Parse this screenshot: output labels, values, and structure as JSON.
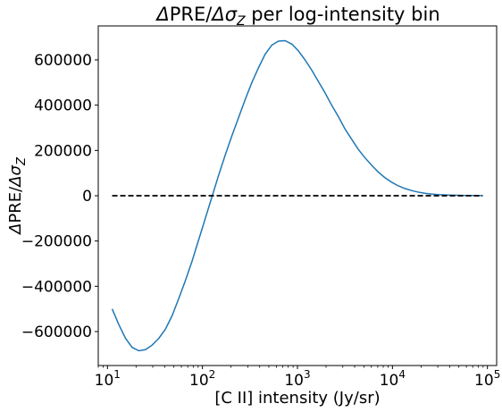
{
  "chart_data": {
    "type": "line",
    "title_parts": {
      "delta1": "Δ",
      "pre": "PRE/",
      "delta2": "Δ",
      "sigma": "σ",
      "sigma_sub": "Z",
      "suffix": " per log-intensity bin"
    },
    "xlabel": "[C II] intensity (Jy/sr)",
    "ylabel_parts": {
      "delta1": "Δ",
      "pre": "PRE/",
      "delta2": "Δ",
      "sigma": "σ",
      "sigma_sub": "Z"
    },
    "x_scale": "log",
    "xlim": [
      8,
      125000
    ],
    "ylim": [
      -750000,
      750000
    ],
    "x_ticks": [
      {
        "base": "10",
        "exp": "1",
        "value": 10
      },
      {
        "base": "10",
        "exp": "2",
        "value": 100
      },
      {
        "base": "10",
        "exp": "3",
        "value": 1000
      },
      {
        "base": "10",
        "exp": "4",
        "value": 10000
      },
      {
        "base": "10",
        "exp": "5",
        "value": 100000
      }
    ],
    "y_ticks": [
      {
        "label": "600000",
        "value": 600000
      },
      {
        "label": "400000",
        "value": 400000
      },
      {
        "label": "200000",
        "value": 200000
      },
      {
        "label": "0",
        "value": 0
      },
      {
        "label": "−200000",
        "value": -200000
      },
      {
        "label": "−400000",
        "value": -400000
      },
      {
        "label": "−600000",
        "value": -600000
      }
    ],
    "grid": false,
    "series": [
      {
        "style": "solid",
        "color": "#1f77b4",
        "x": [
          11.2,
          13.2,
          15.5,
          18.2,
          21.4,
          25.1,
          29.5,
          34.7,
          40.7,
          47.9,
          56.2,
          66.1,
          77.6,
          91.2,
          107.2,
          125.9,
          147.9,
          173.8,
          204.2,
          239.9,
          281.8,
          331.1,
          389.0,
          457.1,
          537.0,
          631.0,
          741.3,
          871.0,
          1023.3,
          1202.3,
          1412.5,
          1659.6,
          1949.8,
          2290.9,
          2691.5,
          3162.3,
          3715.4,
          4365.2,
          5128.6,
          6025.6,
          7079.5,
          8317.6,
          9772.4,
          11481.5,
          13489.6,
          15848.9,
          18620.9,
          21877.6,
          25704.0,
          30199.5,
          35481.3,
          41686.9,
          48977.9,
          57544.0,
          67608.3,
          79432.8,
          89125.1
        ],
        "y": [
          -500000,
          -570000,
          -630000,
          -670000,
          -685000,
          -680000,
          -660000,
          -630000,
          -590000,
          -530000,
          -455000,
          -375000,
          -290000,
          -195000,
          -100000,
          -5000,
          90000,
          180000,
          265000,
          345000,
          425000,
          500000,
          565000,
          625000,
          665000,
          683000,
          685000,
          670000,
          640000,
          600000,
          555000,
          505000,
          455000,
          400000,
          350000,
          295000,
          250000,
          205000,
          168000,
          135000,
          105000,
          80000,
          60000,
          44000,
          32000,
          23000,
          16000,
          11000,
          7500,
          5000,
          3500,
          2500,
          1800,
          1200,
          900,
          700,
          600
        ]
      },
      {
        "style": "dashed",
        "color": "#000000",
        "x": [
          11.2,
          89125.1
        ],
        "y": [
          0,
          0
        ]
      }
    ]
  }
}
